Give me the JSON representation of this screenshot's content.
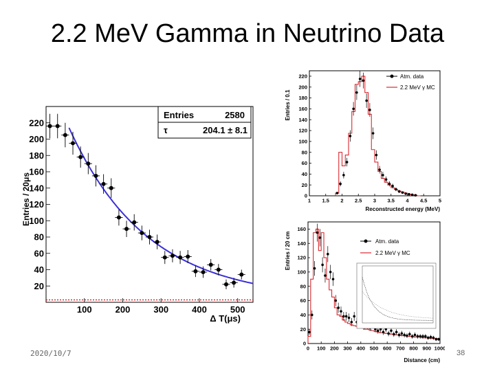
{
  "slide": {
    "title": "2.2 MeV Gamma in Neutrino Data",
    "date": "2020/10/7",
    "page_number": "38"
  },
  "chart_data": [
    {
      "id": "dt",
      "type": "scatter",
      "title": "",
      "xlabel": "Δ T(μs)",
      "ylabel": "Entries / 20μs",
      "xlim": [
        0,
        540
      ],
      "ylim": [
        0,
        240
      ],
      "xticks": [
        100,
        200,
        300,
        400,
        500
      ],
      "yticks": [
        20,
        40,
        60,
        80,
        100,
        120,
        140,
        160,
        180,
        200,
        220
      ],
      "stats_box": {
        "entries_label": "Entries",
        "entries_value": "2580",
        "tau_label": "τ",
        "tau_value": "204.1 ± 8.1"
      },
      "points": [
        [
          10,
          216
        ],
        [
          30,
          216
        ],
        [
          50,
          205
        ],
        [
          70,
          195
        ],
        [
          90,
          178
        ],
        [
          110,
          170
        ],
        [
          130,
          155
        ],
        [
          150,
          145
        ],
        [
          170,
          140
        ],
        [
          190,
          104
        ],
        [
          210,
          90
        ],
        [
          230,
          98
        ],
        [
          250,
          85
        ],
        [
          270,
          80
        ],
        [
          290,
          74
        ],
        [
          310,
          55
        ],
        [
          330,
          57
        ],
        [
          350,
          55
        ],
        [
          370,
          56
        ],
        [
          390,
          38
        ],
        [
          410,
          37
        ],
        [
          430,
          46
        ],
        [
          450,
          40
        ],
        [
          470,
          22
        ],
        [
          490,
          24
        ],
        [
          510,
          34
        ]
      ],
      "fit": {
        "amplitude": 283,
        "tau": 204.1,
        "baseline": 3,
        "x_start": 60
      },
      "errors": [
        15,
        15,
        15,
        14,
        13,
        13,
        13,
        12,
        12,
        10,
        10,
        10,
        9,
        9,
        9,
        8,
        8,
        8,
        8,
        7,
        7,
        7,
        7,
        6,
        6,
        6
      ]
    },
    {
      "id": "energy",
      "type": "scatter",
      "xlabel": "Reconstructed energy (MeV)",
      "ylabel": "Entries / 0.1",
      "xlim": [
        1,
        5
      ],
      "ylim": [
        0,
        230
      ],
      "xticks": [
        1,
        1.5,
        2,
        2.5,
        3,
        3.5,
        4,
        4.5,
        5
      ],
      "yticks": [
        0,
        20,
        40,
        60,
        80,
        100,
        120,
        140,
        160,
        180,
        200,
        220
      ],
      "legend": [
        "Atm. data",
        "2.2 MeV γ MC"
      ],
      "data_series": [
        [
          1.85,
          5
        ],
        [
          1.95,
          22
        ],
        [
          2.05,
          38
        ],
        [
          2.15,
          62
        ],
        [
          2.25,
          110
        ],
        [
          2.35,
          160
        ],
        [
          2.45,
          190
        ],
        [
          2.55,
          215
        ],
        [
          2.65,
          212
        ],
        [
          2.75,
          175
        ],
        [
          2.85,
          158
        ],
        [
          2.95,
          115
        ],
        [
          3.05,
          75
        ],
        [
          3.15,
          48
        ],
        [
          3.25,
          38
        ],
        [
          3.35,
          30
        ],
        [
          3.45,
          22
        ],
        [
          3.55,
          18
        ],
        [
          3.65,
          12
        ],
        [
          3.75,
          8
        ],
        [
          3.85,
          6
        ],
        [
          3.95,
          4
        ],
        [
          4.05,
          3
        ],
        [
          4.15,
          2
        ],
        [
          4.25,
          1
        ]
      ],
      "mc_series": [
        [
          1.8,
          5
        ],
        [
          1.9,
          80
        ],
        [
          2.0,
          55
        ],
        [
          2.1,
          75
        ],
        [
          2.2,
          115
        ],
        [
          2.3,
          155
        ],
        [
          2.4,
          205
        ],
        [
          2.5,
          210
        ],
        [
          2.6,
          220
        ],
        [
          2.7,
          190
        ],
        [
          2.8,
          150
        ],
        [
          2.9,
          85
        ],
        [
          3.0,
          62
        ],
        [
          3.1,
          45
        ],
        [
          3.2,
          32
        ],
        [
          3.3,
          25
        ],
        [
          3.4,
          20
        ],
        [
          3.5,
          15
        ],
        [
          3.6,
          12
        ],
        [
          3.7,
          9
        ],
        [
          3.8,
          7
        ],
        [
          3.9,
          5
        ],
        [
          4.0,
          3
        ],
        [
          4.1,
          2
        ],
        [
          4.2,
          1
        ],
        [
          4.3,
          0
        ]
      ]
    },
    {
      "id": "distance",
      "type": "scatter",
      "xlabel": "Distance (cm)",
      "ylabel": "Entries / 20 cm",
      "xlim": [
        0,
        1000
      ],
      "ylim": [
        0,
        170
      ],
      "xticks": [
        0,
        100,
        200,
        300,
        400,
        500,
        600,
        700,
        800,
        900,
        1000
      ],
      "yticks": [
        0,
        20,
        40,
        60,
        80,
        100,
        120,
        140,
        160
      ],
      "legend": [
        "Atm. data",
        "2.2 MeV γ MC"
      ],
      "data_series": [
        [
          10,
          16
        ],
        [
          30,
          40
        ],
        [
          50,
          105
        ],
        [
          70,
          155
        ],
        [
          90,
          148
        ],
        [
          110,
          110
        ],
        [
          130,
          95
        ],
        [
          150,
          125
        ],
        [
          170,
          100
        ],
        [
          190,
          90
        ],
        [
          210,
          60
        ],
        [
          230,
          50
        ],
        [
          250,
          45
        ],
        [
          270,
          38
        ],
        [
          290,
          38
        ],
        [
          310,
          36
        ],
        [
          330,
          30
        ],
        [
          350,
          38
        ],
        [
          370,
          30
        ],
        [
          390,
          28
        ],
        [
          410,
          26
        ],
        [
          430,
          25
        ],
        [
          450,
          25
        ],
        [
          470,
          22
        ],
        [
          490,
          28
        ],
        [
          510,
          20
        ],
        [
          530,
          18
        ],
        [
          550,
          20
        ],
        [
          570,
          16
        ],
        [
          590,
          20
        ],
        [
          610,
          14
        ],
        [
          630,
          18
        ],
        [
          650,
          13
        ],
        [
          670,
          16
        ],
        [
          690,
          12
        ],
        [
          710,
          14
        ],
        [
          730,
          12
        ],
        [
          750,
          11
        ],
        [
          770,
          13
        ],
        [
          790,
          10
        ],
        [
          810,
          12
        ],
        [
          830,
          10
        ],
        [
          850,
          10
        ],
        [
          870,
          10
        ],
        [
          890,
          10
        ],
        [
          910,
          8
        ],
        [
          930,
          9
        ],
        [
          950,
          8
        ],
        [
          970,
          6
        ],
        [
          990,
          6
        ]
      ],
      "mc_series": [
        [
          0,
          10
        ],
        [
          20,
          90
        ],
        [
          40,
          155
        ],
        [
          60,
          160
        ],
        [
          80,
          130
        ],
        [
          100,
          155
        ],
        [
          120,
          120
        ],
        [
          140,
          90
        ],
        [
          160,
          75
        ],
        [
          180,
          65
        ],
        [
          200,
          50
        ],
        [
          220,
          40
        ],
        [
          240,
          38
        ],
        [
          260,
          33
        ],
        [
          280,
          30
        ],
        [
          300,
          28
        ],
        [
          320,
          26
        ],
        [
          340,
          25
        ],
        [
          360,
          24
        ],
        [
          380,
          23
        ],
        [
          400,
          22
        ],
        [
          420,
          20
        ],
        [
          440,
          20
        ],
        [
          460,
          19
        ],
        [
          480,
          18
        ],
        [
          500,
          17
        ],
        [
          520,
          16
        ],
        [
          540,
          15
        ],
        [
          560,
          15
        ],
        [
          580,
          14
        ],
        [
          600,
          14
        ],
        [
          620,
          13
        ],
        [
          640,
          13
        ],
        [
          660,
          12
        ],
        [
          680,
          12
        ],
        [
          700,
          11
        ],
        [
          720,
          11
        ],
        [
          740,
          10
        ],
        [
          760,
          10
        ],
        [
          780,
          10
        ],
        [
          800,
          9
        ],
        [
          820,
          9
        ],
        [
          840,
          9
        ],
        [
          860,
          8
        ],
        [
          880,
          8
        ],
        [
          900,
          8
        ],
        [
          920,
          7
        ],
        [
          940,
          7
        ],
        [
          960,
          7
        ],
        [
          980,
          6
        ]
      ]
    }
  ]
}
